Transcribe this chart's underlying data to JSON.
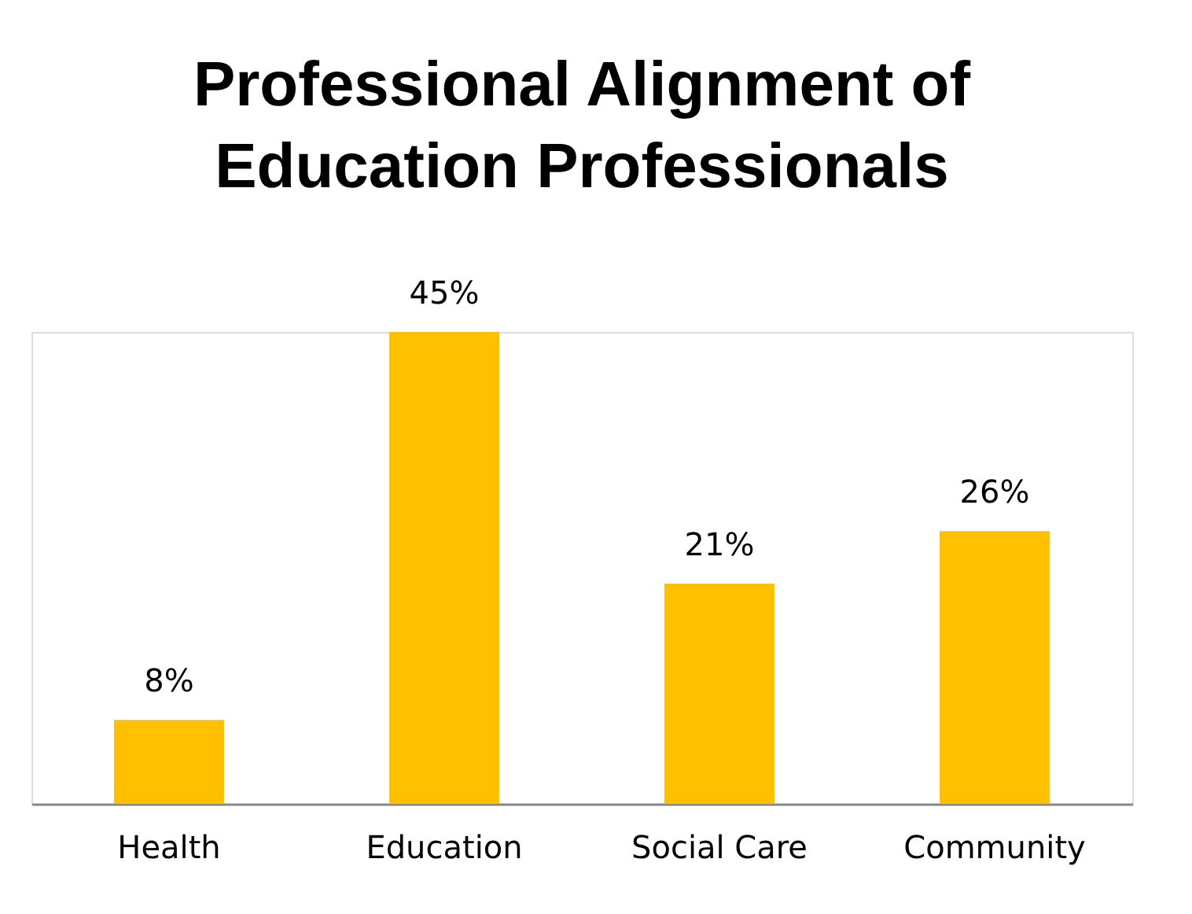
{
  "chart_data": {
    "type": "bar",
    "title": "Professional Alignment of Education Professionals",
    "categories": [
      "Health",
      "Education",
      "Social Care",
      "Community"
    ],
    "values": [
      8,
      45,
      21,
      26
    ],
    "value_labels": [
      "8%",
      "45%",
      "21%",
      "26%"
    ],
    "color": "#ffc000"
  }
}
